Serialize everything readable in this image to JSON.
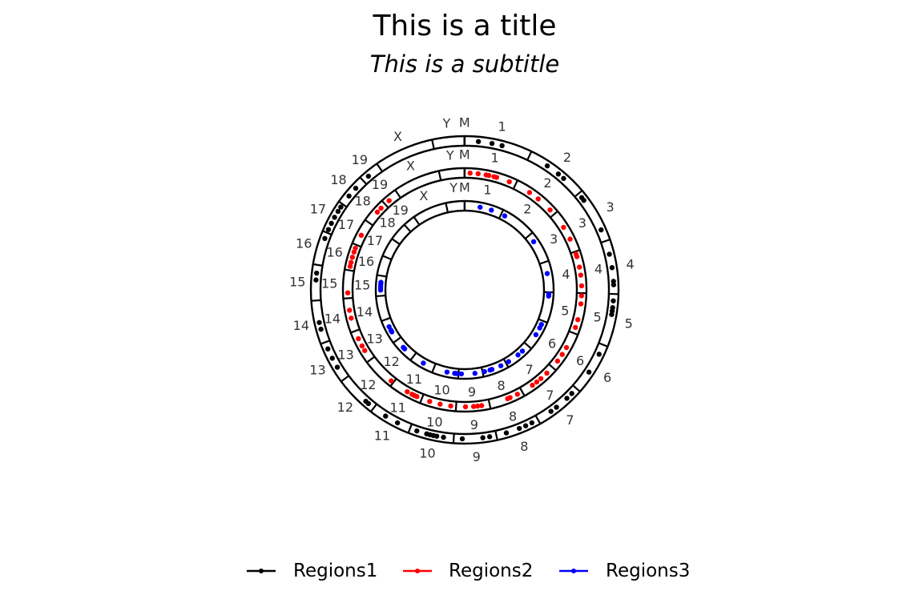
{
  "chart_data": {
    "type": "scatter",
    "layout": "circular-genome",
    "title": "This is a title",
    "subtitle": "This is a subtitle",
    "chromosomes": [
      {
        "name": "1",
        "length": 195
      },
      {
        "name": "2",
        "length": 182
      },
      {
        "name": "3",
        "length": 160
      },
      {
        "name": "4",
        "length": 157
      },
      {
        "name": "5",
        "length": 152
      },
      {
        "name": "6",
        "length": 150
      },
      {
        "name": "7",
        "length": 145
      },
      {
        "name": "8",
        "length": 130
      },
      {
        "name": "9",
        "length": 125
      },
      {
        "name": "10",
        "length": 131
      },
      {
        "name": "11",
        "length": 122
      },
      {
        "name": "12",
        "length": 120
      },
      {
        "name": "13",
        "length": 121
      },
      {
        "name": "14",
        "length": 125
      },
      {
        "name": "15",
        "length": 104
      },
      {
        "name": "16",
        "length": 98
      },
      {
        "name": "17",
        "length": 95
      },
      {
        "name": "18",
        "length": 91
      },
      {
        "name": "19",
        "length": 61
      },
      {
        "name": "X",
        "length": 171
      },
      {
        "name": "Y",
        "length": 92
      },
      {
        "name": "M",
        "length": 1
      }
    ],
    "series": [
      {
        "name": "Regions1",
        "color": "#000000",
        "points": [
          {
            "chr": "1",
            "pos": 40
          },
          {
            "chr": "1",
            "pos": 80
          },
          {
            "chr": "1",
            "pos": 110
          },
          {
            "chr": "2",
            "pos": 60
          },
          {
            "chr": "2",
            "pos": 100
          },
          {
            "chr": "2",
            "pos": 120
          },
          {
            "chr": "3",
            "pos": 15
          },
          {
            "chr": "3",
            "pos": 25
          },
          {
            "chr": "3",
            "pos": 125
          },
          {
            "chr": "4",
            "pos": 40
          },
          {
            "chr": "4",
            "pos": 80
          },
          {
            "chr": "4",
            "pos": 120
          },
          {
            "chr": "4",
            "pos": 130
          },
          {
            "chr": "5",
            "pos": 20
          },
          {
            "chr": "5",
            "pos": 40
          },
          {
            "chr": "5",
            "pos": 50
          },
          {
            "chr": "5",
            "pos": 60
          },
          {
            "chr": "6",
            "pos": 30
          },
          {
            "chr": "6",
            "pos": 90
          },
          {
            "chr": "7",
            "pos": 20
          },
          {
            "chr": "7",
            "pos": 40
          },
          {
            "chr": "7",
            "pos": 80
          },
          {
            "chr": "7",
            "pos": 100
          },
          {
            "chr": "8",
            "pos": 20
          },
          {
            "chr": "8",
            "pos": 40
          },
          {
            "chr": "8",
            "pos": 60
          },
          {
            "chr": "8",
            "pos": 100
          },
          {
            "chr": "9",
            "pos": 20
          },
          {
            "chr": "9",
            "pos": 40
          },
          {
            "chr": "9",
            "pos": 100
          },
          {
            "chr": "10",
            "pos": 30
          },
          {
            "chr": "10",
            "pos": 50
          },
          {
            "chr": "10",
            "pos": 60
          },
          {
            "chr": "10",
            "pos": 70
          },
          {
            "chr": "10",
            "pos": 80
          },
          {
            "chr": "10",
            "pos": 110
          },
          {
            "chr": "11",
            "pos": 40
          },
          {
            "chr": "11",
            "pos": 80
          },
          {
            "chr": "12",
            "pos": 20
          },
          {
            "chr": "12",
            "pos": 30
          },
          {
            "chr": "13",
            "pos": 40
          },
          {
            "chr": "13",
            "pos": 70
          },
          {
            "chr": "13",
            "pos": 100
          },
          {
            "chr": "14",
            "pos": 40
          },
          {
            "chr": "14",
            "pos": 60
          },
          {
            "chr": "15",
            "pos": 60
          },
          {
            "chr": "15",
            "pos": 80
          },
          {
            "chr": "16",
            "pos": 80
          },
          {
            "chr": "17",
            "pos": 10
          },
          {
            "chr": "17",
            "pos": 30
          },
          {
            "chr": "17",
            "pos": 50
          },
          {
            "chr": "17",
            "pos": 70
          },
          {
            "chr": "17",
            "pos": 85
          },
          {
            "chr": "18",
            "pos": 30
          },
          {
            "chr": "18",
            "pos": 60
          },
          {
            "chr": "19",
            "pos": 20
          }
        ]
      },
      {
        "name": "Regions2",
        "color": "#ff0000",
        "points": [
          {
            "chr": "1",
            "pos": 20
          },
          {
            "chr": "1",
            "pos": 50
          },
          {
            "chr": "1",
            "pos": 80
          },
          {
            "chr": "1",
            "pos": 90
          },
          {
            "chr": "1",
            "pos": 110
          },
          {
            "chr": "1",
            "pos": 120
          },
          {
            "chr": "1",
            "pos": 170
          },
          {
            "chr": "2",
            "pos": 60
          },
          {
            "chr": "2",
            "pos": 100
          },
          {
            "chr": "2",
            "pos": 160
          },
          {
            "chr": "3",
            "pos": 60
          },
          {
            "chr": "3",
            "pos": 110
          },
          {
            "chr": "4",
            "pos": 10
          },
          {
            "chr": "4",
            "pos": 20
          },
          {
            "chr": "4",
            "pos": 60
          },
          {
            "chr": "4",
            "pos": 90
          },
          {
            "chr": "4",
            "pos": 130
          },
          {
            "chr": "5",
            "pos": 10
          },
          {
            "chr": "5",
            "pos": 40
          },
          {
            "chr": "5",
            "pos": 100
          },
          {
            "chr": "5",
            "pos": 130
          },
          {
            "chr": "6",
            "pos": 60
          },
          {
            "chr": "6",
            "pos": 90
          },
          {
            "chr": "6",
            "pos": 120
          },
          {
            "chr": "7",
            "pos": 30
          },
          {
            "chr": "7",
            "pos": 60
          },
          {
            "chr": "7",
            "pos": 80
          },
          {
            "chr": "7",
            "pos": 100
          },
          {
            "chr": "8",
            "pos": 20
          },
          {
            "chr": "8",
            "pos": 50
          },
          {
            "chr": "8",
            "pos": 60
          },
          {
            "chr": "9",
            "pos": 30
          },
          {
            "chr": "9",
            "pos": 45
          },
          {
            "chr": "9",
            "pos": 60
          },
          {
            "chr": "9",
            "pos": 90
          },
          {
            "chr": "10",
            "pos": 20
          },
          {
            "chr": "10",
            "pos": 60
          },
          {
            "chr": "10",
            "pos": 100
          },
          {
            "chr": "11",
            "pos": 20
          },
          {
            "chr": "11",
            "pos": 30
          },
          {
            "chr": "11",
            "pos": 40
          },
          {
            "chr": "11",
            "pos": 60
          },
          {
            "chr": "12",
            "pos": 10
          },
          {
            "chr": "13",
            "pos": 40
          },
          {
            "chr": "13",
            "pos": 60
          },
          {
            "chr": "13",
            "pos": 90
          },
          {
            "chr": "14",
            "pos": 50
          },
          {
            "chr": "14",
            "pos": 80
          },
          {
            "chr": "15",
            "pos": 20
          },
          {
            "chr": "16",
            "pos": 15
          },
          {
            "chr": "16",
            "pos": 30
          },
          {
            "chr": "16",
            "pos": 50
          },
          {
            "chr": "16",
            "pos": 70
          },
          {
            "chr": "16",
            "pos": 85
          },
          {
            "chr": "17",
            "pos": 40
          },
          {
            "chr": "18",
            "pos": 50
          },
          {
            "chr": "18",
            "pos": 70
          },
          {
            "chr": "19",
            "pos": 20
          }
        ]
      },
      {
        "name": "Regions3",
        "color": "#0000ff",
        "points": [
          {
            "chr": "1",
            "pos": 80
          },
          {
            "chr": "1",
            "pos": 140
          },
          {
            "chr": "2",
            "pos": 20
          },
          {
            "chr": "3",
            "pos": 40
          },
          {
            "chr": "4",
            "pos": 60
          },
          {
            "chr": "5",
            "pos": 10
          },
          {
            "chr": "5",
            "pos": 20
          },
          {
            "chr": "6",
            "pos": 20
          },
          {
            "chr": "6",
            "pos": 40
          },
          {
            "chr": "6",
            "pos": 80
          },
          {
            "chr": "7",
            "pos": 40
          },
          {
            "chr": "7",
            "pos": 70
          },
          {
            "chr": "7",
            "pos": 130
          },
          {
            "chr": "8",
            "pos": 30
          },
          {
            "chr": "8",
            "pos": 80
          },
          {
            "chr": "8",
            "pos": 90
          },
          {
            "chr": "8",
            "pos": 120
          },
          {
            "chr": "9",
            "pos": 40
          },
          {
            "chr": "9",
            "pos": 110
          },
          {
            "chr": "10",
            "pos": 10
          },
          {
            "chr": "10",
            "pos": 20
          },
          {
            "chr": "10",
            "pos": 60
          },
          {
            "chr": "11",
            "pos": 60
          },
          {
            "chr": "12",
            "pos": 60
          },
          {
            "chr": "12",
            "pos": 70
          },
          {
            "chr": "13",
            "pos": 50
          },
          {
            "chr": "13",
            "pos": 60
          },
          {
            "chr": "13",
            "pos": 80
          },
          {
            "chr": "15",
            "pos": 30
          },
          {
            "chr": "15",
            "pos": 40
          },
          {
            "chr": "15",
            "pos": 50
          },
          {
            "chr": "15",
            "pos": 60
          },
          {
            "chr": "15",
            "pos": 70
          }
        ]
      }
    ],
    "legend": {
      "position": "bottom"
    }
  }
}
